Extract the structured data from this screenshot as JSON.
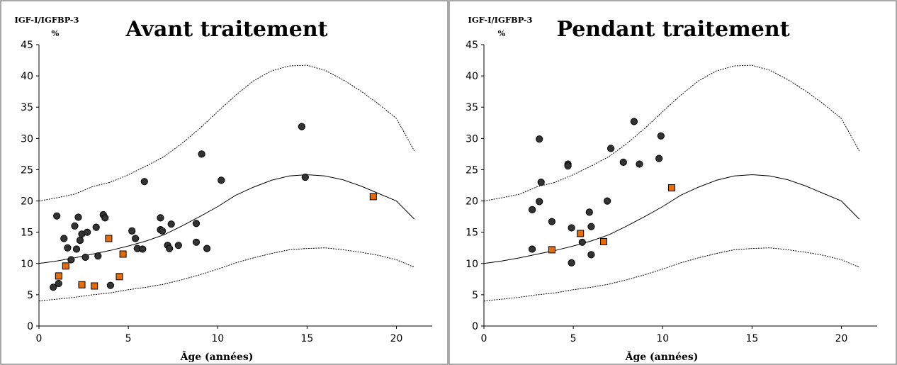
{
  "chart_data": [
    {
      "type": "scatter",
      "title": "Avant traitement",
      "ylabel": "IGF-I/IGFBP-3 %",
      "ylabel_lines": [
        "IGF-I/IGFBP-3",
        "%"
      ],
      "xlabel": "Âge (années)",
      "xlim": [
        0,
        22
      ],
      "ylim": [
        0,
        45
      ],
      "xticks": [
        0,
        5,
        10,
        15,
        20
      ],
      "yticks": [
        0,
        5,
        10,
        15,
        20,
        25,
        30,
        35,
        40,
        45
      ],
      "xtick_labels": [
        "0",
        "5",
        "10",
        "15",
        "20"
      ],
      "ytick_labels": [
        "0",
        "5",
        "10",
        "15",
        "20",
        "25",
        "30",
        "35",
        "40",
        "45"
      ],
      "grid": false,
      "colors": {
        "circle": "#333333",
        "square": "#e46c0a"
      },
      "series": [
        {
          "marker": "circle",
          "points": [
            [
              0.8,
              6.2
            ],
            [
              1.1,
              6.8
            ],
            [
              1.0,
              17.6
            ],
            [
              1.4,
              14.0
            ],
            [
              1.6,
              12.5
            ],
            [
              1.8,
              10.6
            ],
            [
              2.0,
              16.0
            ],
            [
              2.1,
              12.3
            ],
            [
              2.2,
              17.4
            ],
            [
              2.3,
              13.7
            ],
            [
              2.4,
              14.7
            ],
            [
              2.6,
              11.0
            ],
            [
              2.7,
              15.0
            ],
            [
              3.2,
              15.8
            ],
            [
              3.3,
              11.2
            ],
            [
              3.6,
              17.8
            ],
            [
              3.7,
              17.3
            ],
            [
              4.0,
              6.5
            ],
            [
              5.2,
              15.2
            ],
            [
              5.4,
              14.0
            ],
            [
              5.5,
              12.4
            ],
            [
              5.8,
              12.3
            ],
            [
              5.9,
              23.1
            ],
            [
              6.8,
              17.3
            ],
            [
              6.8,
              15.4
            ],
            [
              6.9,
              15.2
            ],
            [
              7.2,
              12.9
            ],
            [
              7.3,
              12.4
            ],
            [
              7.4,
              16.3
            ],
            [
              7.8,
              12.9
            ],
            [
              8.8,
              16.4
            ],
            [
              8.8,
              13.4
            ],
            [
              9.1,
              27.5
            ],
            [
              9.4,
              12.4
            ],
            [
              10.2,
              23.3
            ],
            [
              14.7,
              31.9
            ],
            [
              14.9,
              23.8
            ]
          ]
        },
        {
          "marker": "square",
          "points": [
            [
              1.1,
              8.0
            ],
            [
              1.5,
              9.6
            ],
            [
              2.4,
              6.6
            ],
            [
              3.1,
              6.4
            ],
            [
              3.9,
              14.0
            ],
            [
              4.5,
              7.9
            ],
            [
              4.7,
              11.5
            ],
            [
              18.7,
              20.7
            ]
          ]
        }
      ],
      "reference_curves": [
        {
          "style": "dashed",
          "points": [
            [
              0,
              20
            ],
            [
              1,
              20.5
            ],
            [
              2,
              21.1
            ],
            [
              3,
              22.3
            ],
            [
              4,
              23.0
            ],
            [
              5,
              24.2
            ],
            [
              6,
              25.6
            ],
            [
              7,
              27.1
            ],
            [
              8,
              29.2
            ],
            [
              9,
              31.6
            ],
            [
              10,
              34.3
            ],
            [
              11,
              36.9
            ],
            [
              12,
              39.2
            ],
            [
              13,
              40.8
            ],
            [
              14,
              41.6
            ],
            [
              15,
              41.7
            ],
            [
              16,
              40.9
            ],
            [
              17,
              39.4
            ],
            [
              18,
              37.6
            ],
            [
              19,
              35.5
            ],
            [
              20,
              33.2
            ],
            [
              21,
              28.0
            ]
          ]
        },
        {
          "style": "solid",
          "points": [
            [
              0,
              10.0
            ],
            [
              1,
              10.4
            ],
            [
              2,
              10.9
            ],
            [
              3,
              11.5
            ],
            [
              4,
              12.1
            ],
            [
              5,
              12.8
            ],
            [
              6,
              13.6
            ],
            [
              7,
              14.6
            ],
            [
              8,
              16.0
            ],
            [
              9,
              17.5
            ],
            [
              10,
              19.1
            ],
            [
              11,
              20.9
            ],
            [
              12,
              22.2
            ],
            [
              13,
              23.3
            ],
            [
              14,
              24.0
            ],
            [
              15,
              24.2
            ],
            [
              16,
              24.0
            ],
            [
              17,
              23.4
            ],
            [
              18,
              22.4
            ],
            [
              19,
              21.2
            ],
            [
              20,
              20.0
            ],
            [
              21,
              17.1
            ]
          ]
        },
        {
          "style": "dashed",
          "points": [
            [
              0,
              4.0
            ],
            [
              1,
              4.3
            ],
            [
              2,
              4.6
            ],
            [
              3,
              5.0
            ],
            [
              4,
              5.3
            ],
            [
              5,
              5.8
            ],
            [
              6,
              6.2
            ],
            [
              7,
              6.7
            ],
            [
              8,
              7.4
            ],
            [
              9,
              8.2
            ],
            [
              10,
              9.1
            ],
            [
              11,
              10.1
            ],
            [
              12,
              10.9
            ],
            [
              13,
              11.6
            ],
            [
              14,
              12.2
            ],
            [
              15,
              12.4
            ],
            [
              16,
              12.5
            ],
            [
              17,
              12.2
            ],
            [
              18,
              11.8
            ],
            [
              19,
              11.3
            ],
            [
              20,
              10.6
            ],
            [
              21,
              9.4
            ]
          ]
        }
      ]
    },
    {
      "type": "scatter",
      "title": "Pendant traitement",
      "ylabel": "IGF-I/IGFBP-3 %",
      "ylabel_lines": [
        "IGF-I/IGFBP-3",
        "%"
      ],
      "xlabel": "Âge (années)",
      "xlim": [
        0,
        22
      ],
      "ylim": [
        0,
        45
      ],
      "xticks": [
        0,
        5,
        10,
        15,
        20
      ],
      "yticks": [
        0,
        5,
        10,
        15,
        20,
        25,
        30,
        35,
        40,
        45
      ],
      "xtick_labels": [
        "0",
        "5",
        "10",
        "15",
        "20"
      ],
      "ytick_labels": [
        "0",
        "5",
        "10",
        "15",
        "20",
        "25",
        "30",
        "35",
        "40",
        "45"
      ],
      "grid": false,
      "colors": {
        "circle": "#333333",
        "square": "#e46c0a"
      },
      "series": [
        {
          "marker": "circle",
          "points": [
            [
              2.7,
              12.3
            ],
            [
              2.7,
              18.6
            ],
            [
              3.1,
              29.9
            ],
            [
              3.1,
              19.9
            ],
            [
              3.2,
              23.0
            ],
            [
              3.8,
              16.7
            ],
            [
              4.7,
              25.9
            ],
            [
              4.7,
              25.6
            ],
            [
              4.9,
              15.7
            ],
            [
              4.9,
              10.1
            ],
            [
              5.5,
              13.4
            ],
            [
              5.9,
              18.2
            ],
            [
              6.0,
              15.9
            ],
            [
              6.0,
              11.4
            ],
            [
              6.9,
              20.0
            ],
            [
              7.1,
              28.4
            ],
            [
              7.8,
              26.2
            ],
            [
              8.4,
              32.7
            ],
            [
              8.7,
              25.9
            ],
            [
              9.8,
              26.8
            ],
            [
              9.9,
              30.4
            ]
          ]
        },
        {
          "marker": "square",
          "points": [
            [
              3.8,
              12.2
            ],
            [
              5.4,
              14.8
            ],
            [
              6.7,
              13.5
            ],
            [
              10.5,
              22.1
            ]
          ]
        }
      ],
      "reference_curves": [
        {
          "style": "dashed",
          "points": [
            [
              0,
              20
            ],
            [
              1,
              20.5
            ],
            [
              2,
              21.1
            ],
            [
              3,
              22.3
            ],
            [
              4,
              23.0
            ],
            [
              5,
              24.2
            ],
            [
              6,
              25.6
            ],
            [
              7,
              27.1
            ],
            [
              8,
              29.2
            ],
            [
              9,
              31.6
            ],
            [
              10,
              34.3
            ],
            [
              11,
              36.9
            ],
            [
              12,
              39.2
            ],
            [
              13,
              40.8
            ],
            [
              14,
              41.6
            ],
            [
              15,
              41.7
            ],
            [
              16,
              40.9
            ],
            [
              17,
              39.4
            ],
            [
              18,
              37.6
            ],
            [
              19,
              35.5
            ],
            [
              20,
              33.2
            ],
            [
              21,
              28.0
            ]
          ]
        },
        {
          "style": "solid",
          "points": [
            [
              0,
              10.0
            ],
            [
              1,
              10.4
            ],
            [
              2,
              10.9
            ],
            [
              3,
              11.5
            ],
            [
              4,
              12.1
            ],
            [
              5,
              12.8
            ],
            [
              6,
              13.6
            ],
            [
              7,
              14.6
            ],
            [
              8,
              16.0
            ],
            [
              9,
              17.5
            ],
            [
              10,
              19.1
            ],
            [
              11,
              20.9
            ],
            [
              12,
              22.2
            ],
            [
              13,
              23.3
            ],
            [
              14,
              24.0
            ],
            [
              15,
              24.2
            ],
            [
              16,
              24.0
            ],
            [
              17,
              23.4
            ],
            [
              18,
              22.4
            ],
            [
              19,
              21.2
            ],
            [
              20,
              20.0
            ],
            [
              21,
              17.1
            ]
          ]
        },
        {
          "style": "dashed",
          "points": [
            [
              0,
              4.0
            ],
            [
              1,
              4.3
            ],
            [
              2,
              4.6
            ],
            [
              3,
              5.0
            ],
            [
              4,
              5.3
            ],
            [
              5,
              5.8
            ],
            [
              6,
              6.2
            ],
            [
              7,
              6.7
            ],
            [
              8,
              7.4
            ],
            [
              9,
              8.2
            ],
            [
              10,
              9.1
            ],
            [
              11,
              10.1
            ],
            [
              12,
              10.9
            ],
            [
              13,
              11.6
            ],
            [
              14,
              12.2
            ],
            [
              15,
              12.4
            ],
            [
              16,
              12.5
            ],
            [
              17,
              12.2
            ],
            [
              18,
              11.8
            ],
            [
              19,
              11.3
            ],
            [
              20,
              10.6
            ],
            [
              21,
              9.4
            ]
          ]
        }
      ]
    }
  ]
}
